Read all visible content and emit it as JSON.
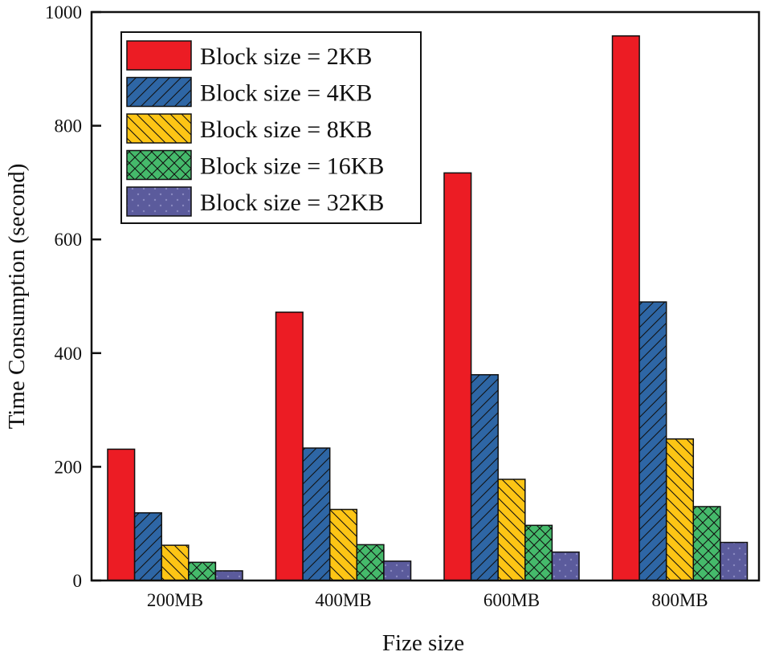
{
  "chart_data": {
    "type": "bar",
    "title": "",
    "xlabel": "Fize size",
    "ylabel": "Time Consumption (second)",
    "ylim": [
      0,
      1000
    ],
    "yticks": [
      0,
      200,
      400,
      600,
      800,
      1000
    ],
    "categories": [
      "200MB",
      "400MB",
      "600MB",
      "800MB"
    ],
    "legend_position": "top-left",
    "grid": false,
    "series": [
      {
        "name": "Block size = 2KB",
        "color": "#ec1c24",
        "pattern": "solid",
        "values": [
          231,
          472,
          717,
          958
        ]
      },
      {
        "name": "Block size = 4KB",
        "color": "#2e66a5",
        "pattern": "forward-diagonal",
        "values": [
          119,
          233,
          362,
          490
        ]
      },
      {
        "name": "Block size = 8KB",
        "color": "#fdc515",
        "pattern": "back-diagonal",
        "values": [
          62,
          125,
          178,
          249
        ]
      },
      {
        "name": "Block size = 16KB",
        "color": "#45ba6b",
        "pattern": "crosshatch",
        "values": [
          32,
          63,
          97,
          130
        ]
      },
      {
        "name": "Block size = 32KB",
        "color": "#5b5b9c",
        "pattern": "dots",
        "values": [
          17,
          34,
          50,
          67
        ]
      }
    ]
  }
}
